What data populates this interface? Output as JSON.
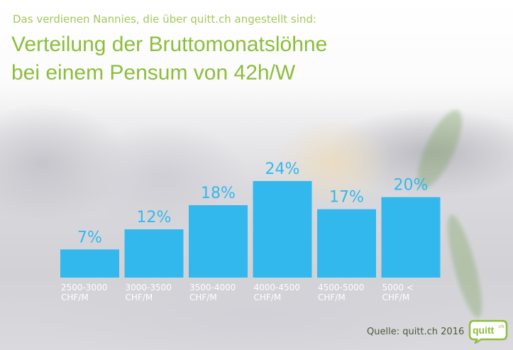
{
  "header": {
    "pre_title": "Das verdienen Nannies, die über quitt.ch angestellt sind:",
    "title_line1": "Verteilung der Bruttomonatslöhne",
    "title_line2": "bei einem Pensum von 42h/W"
  },
  "footer": {
    "source": "Quelle: quitt.ch 2016"
  },
  "logo": {
    "text": "quitt",
    "suffix": ".ch"
  },
  "colors": {
    "bar": "#33b8ee",
    "label": "#33b8ee",
    "title": "#8dbd3c",
    "axis_text": "#ffffff"
  },
  "chart_data": {
    "type": "bar",
    "categories": [
      [
        "2500-3000",
        "CHF/M"
      ],
      [
        "3000-3500",
        "CHF/M"
      ],
      [
        "3500-4000",
        "CHF/M"
      ],
      [
        "4000-4500",
        "CHF/M"
      ],
      [
        "4500-5000",
        "CHF/M"
      ],
      [
        "5000 <",
        "CHF/M"
      ]
    ],
    "values": [
      7,
      12,
      18,
      24,
      17,
      20
    ],
    "value_labels": [
      "7%",
      "12%",
      "18%",
      "24%",
      "17%",
      "20%"
    ],
    "unit": "%",
    "ylim": [
      0,
      24
    ],
    "grid": false,
    "legend": "none"
  }
}
